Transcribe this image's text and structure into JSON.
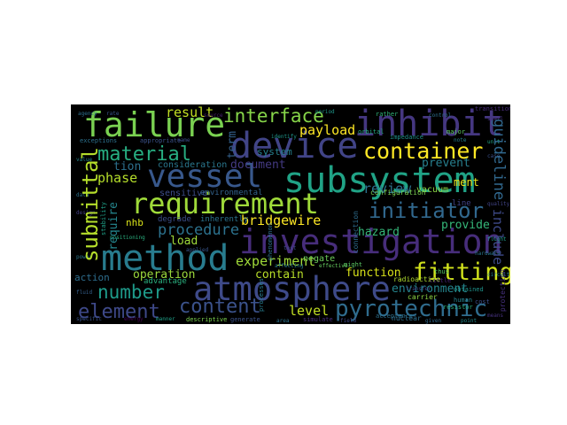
{
  "word_cloud": {
    "words": [
      {
        "id": "failure",
        "text": "failure",
        "color": "#7ad151"
      },
      {
        "id": "interface",
        "text": "interface",
        "color": "#86d549"
      },
      {
        "id": "inhibit",
        "text": "inhibit",
        "color": "#453781"
      },
      {
        "id": "device",
        "text": "device",
        "color": "#414487"
      },
      {
        "id": "result",
        "text": "result",
        "color": "#c2df23"
      },
      {
        "id": "payload",
        "text": "payload",
        "color": "#fde725"
      },
      {
        "id": "material",
        "text": "material",
        "color": "#27ad81"
      },
      {
        "id": "container",
        "text": "container",
        "color": "#fde725"
      },
      {
        "id": "vessel",
        "text": "vessel",
        "color": "#38588c"
      },
      {
        "id": "subsystem",
        "text": "subsystem",
        "color": "#20a386"
      },
      {
        "id": "phase",
        "text": "phase",
        "color": "#b5de2b"
      },
      {
        "id": "requirement",
        "text": "requirement",
        "color": "#9fda3a"
      },
      {
        "id": "initiator",
        "text": "initiator",
        "color": "#31688e"
      },
      {
        "id": "submittal",
        "text": "submittal",
        "color": "#b5de2b"
      },
      {
        "id": "investigation",
        "text": "investigation",
        "color": "#472d7b"
      },
      {
        "id": "bridgewire",
        "text": "bridgewire",
        "color": "#fde725"
      },
      {
        "id": "procedure",
        "text": "procedure",
        "color": "#2c728e"
      },
      {
        "id": "load",
        "text": "load",
        "color": "#9fda3a"
      },
      {
        "id": "method",
        "text": "method",
        "color": "#287c8e"
      },
      {
        "id": "experiment",
        "text": "experiment",
        "color": "#a0da39"
      },
      {
        "id": "fitting",
        "text": "fitting",
        "color": "#d0e11c"
      },
      {
        "id": "atmosphere",
        "text": "atmosphere",
        "color": "#3e4a89"
      },
      {
        "id": "number",
        "text": "number",
        "color": "#1e9b8a"
      },
      {
        "id": "operation",
        "text": "operation",
        "color": "#9bd93c"
      },
      {
        "id": "content",
        "text": "content",
        "color": "#3b528b"
      },
      {
        "id": "element",
        "text": "element",
        "color": "#3e4989"
      },
      {
        "id": "pyrotechnic",
        "text": "pyrotechnic",
        "color": "#2f6c8e"
      },
      {
        "id": "level",
        "text": "level",
        "color": "#c2df23"
      },
      {
        "id": "environment",
        "text": "environment",
        "color": "#25858e"
      },
      {
        "id": "guideline",
        "text": "guideline",
        "color": "#31688e"
      },
      {
        "id": "include",
        "text": "include",
        "color": "#3e4a89"
      },
      {
        "id": "review",
        "text": "review",
        "color": "#2c728e"
      },
      {
        "id": "prevent",
        "text": "prevent",
        "color": "#277f8e"
      },
      {
        "id": "document",
        "text": "document",
        "color": "#443a83"
      },
      {
        "id": "hazard",
        "text": "hazard",
        "color": "#35b779"
      },
      {
        "id": "provide",
        "text": "provide",
        "color": "#35b779"
      },
      {
        "id": "contain",
        "text": "contain",
        "color": "#b8de29"
      },
      {
        "id": "function",
        "text": "function",
        "color": "#d8e219"
      },
      {
        "id": "action",
        "text": "action",
        "color": "#2e6e8e"
      },
      {
        "id": "require",
        "text": "require",
        "color": "#24868e"
      },
      {
        "id": "nhb",
        "text": "nhb",
        "color": "#d8e219"
      },
      {
        "id": "tion",
        "text": "tion",
        "color": "#2d708e"
      },
      {
        "id": "system",
        "text": "system",
        "color": "#26818e"
      },
      {
        "id": "term",
        "text": "term",
        "color": "#34618d"
      },
      {
        "id": "ment",
        "text": "ment",
        "color": "#eae51a"
      },
      {
        "id": "vacuum",
        "text": "vacuum",
        "color": "#8bd646"
      },
      {
        "id": "negate",
        "text": "negate",
        "color": "#6ccd5a"
      },
      {
        "id": "consideration",
        "text": "consideration",
        "color": "#2a778e"
      },
      {
        "id": "sensitive",
        "text": "sensitive",
        "color": "#3d4d8a"
      },
      {
        "id": "environmental",
        "text": "environmental",
        "color": "#33628d"
      },
      {
        "id": "inherently",
        "text": "inherently",
        "color": "#2c738e"
      },
      {
        "id": "degrade",
        "text": "degrade",
        "color": "#3c4f8a"
      },
      {
        "id": "advantage",
        "text": "advantage",
        "color": "#2ab07f"
      },
      {
        "id": "configuration",
        "text": "configuration",
        "color": "#7ad151"
      },
      {
        "id": "radioactive",
        "text": "radioactive",
        "color": "#b0dd2f"
      },
      {
        "id": "connection",
        "text": "connection",
        "color": "#2e6d8e"
      },
      {
        "id": "protection",
        "text": "protection",
        "color": "#46307e"
      },
      {
        "id": "carrier",
        "text": "carrier",
        "color": "#8ed645"
      },
      {
        "id": "nuclear",
        "text": "nuclear",
        "color": "#2e6f8e"
      },
      {
        "id": "transition",
        "text": "transition",
        "color": "#472c7a"
      },
      {
        "id": "exceptions",
        "text": "exceptions",
        "color": "#2d718e"
      },
      {
        "id": "appropriate",
        "text": "appropriate",
        "color": "#3b528b"
      },
      {
        "id": "orbital",
        "text": "orbital",
        "color": "#25ac82"
      },
      {
        "id": "major",
        "text": "major",
        "color": "#5ec962"
      },
      {
        "id": "obtained",
        "text": "obtained",
        "color": "#1f948c"
      },
      {
        "id": "resistor",
        "text": "resistor",
        "color": "#29af7f"
      },
      {
        "id": "human",
        "text": "human",
        "color": "#25838e"
      },
      {
        "id": "generate",
        "text": "generate",
        "color": "#3b528b"
      },
      {
        "id": "descriptive",
        "text": "descriptive",
        "color": "#7cd250"
      },
      {
        "id": "simulate",
        "text": "simulate",
        "color": "#472f7d"
      },
      {
        "id": "little",
        "text": "little",
        "color": "#482475"
      },
      {
        "id": "might",
        "text": "might",
        "color": "#5ac864"
      },
      {
        "id": "thus",
        "text": "thus",
        "color": "#54c568"
      },
      {
        "id": "stability",
        "text": "stability",
        "color": "#1fa088"
      },
      {
        "id": "processes",
        "text": "processes",
        "color": "#287d8e"
      },
      {
        "id": "phenomenon",
        "text": "phenomenon",
        "color": "#2e6e8e"
      },
      {
        "id": "acceptance",
        "text": "acceptance",
        "color": "#2d708e"
      },
      {
        "id": "impedance",
        "text": "impedance",
        "color": "#20928c"
      },
      {
        "id": "identify",
        "text": "identify",
        "color": "#1f968b"
      },
      {
        "id": "rather",
        "text": "rather",
        "color": "#31b57b"
      },
      {
        "id": "cost",
        "text": "cost",
        "color": "#3d4e8a"
      },
      {
        "id": "line",
        "text": "line",
        "color": "#414487"
      },
      {
        "id": "transfer",
        "text": "transfer",
        "color": "#3f4889"
      },
      {
        "id": "positioning",
        "text": "positioning",
        "color": "#2ab07f"
      },
      {
        "id": "affecting",
        "text": "affecting",
        "color": "#287c8e"
      },
      {
        "id": "effective",
        "text": "effective",
        "color": "#65cb5e"
      },
      {
        "id": "applied",
        "text": "applied",
        "color": "#39568c"
      },
      {
        "id": "note",
        "text": "note",
        "color": "#277f8e"
      },
      {
        "id": "name",
        "text": "name",
        "color": "#3d4d8a"
      },
      {
        "id": "fluid",
        "text": "fluid",
        "color": "#355f8d"
      },
      {
        "id": "agency",
        "text": "agency",
        "color": "#2d708e"
      },
      {
        "id": "rate",
        "text": "rate",
        "color": "#3a548c"
      },
      {
        "id": "source",
        "text": "source",
        "color": "#481f70"
      },
      {
        "id": "period",
        "text": "period",
        "color": "#1f988b"
      },
      {
        "id": "control",
        "text": "control",
        "color": "#2d708e"
      },
      {
        "id": "shall",
        "text": "shall",
        "color": "#46337f"
      },
      {
        "id": "unit",
        "text": "unit",
        "color": "#22a785"
      },
      {
        "id": "case",
        "text": "case",
        "color": "#3b528b"
      },
      {
        "id": "value",
        "text": "value",
        "color": "#24868e"
      },
      {
        "id": "data",
        "text": "data",
        "color": "#2c728e"
      },
      {
        "id": "design",
        "text": "design",
        "color": "#433e85"
      },
      {
        "id": "power",
        "text": "power",
        "color": "#2a788e"
      },
      {
        "id": "specific",
        "text": "specific",
        "color": "#3a538b"
      },
      {
        "id": "energy",
        "text": "energy",
        "color": "#440154"
      },
      {
        "id": "manner",
        "text": "manner",
        "color": "#1fa088"
      },
      {
        "id": "area",
        "text": "area",
        "color": "#2c738e"
      },
      {
        "id": "field",
        "text": "field",
        "color": "#3f4889"
      },
      {
        "id": "given",
        "text": "given",
        "color": "#30698e"
      },
      {
        "id": "point",
        "text": "point",
        "color": "#23898e"
      },
      {
        "id": "means",
        "text": "means",
        "color": "#46327e"
      },
      {
        "id": "flight",
        "text": "flight",
        "color": "#1e9c89"
      },
      {
        "id": "hardware",
        "text": "hardware",
        "color": "#2a768e"
      },
      {
        "id": "quality",
        "text": "quality",
        "color": "#414487"
      },
      {
        "id": "circuit",
        "text": "circuit",
        "color": "#26828e"
      },
      {
        "id": "test",
        "text": "test",
        "color": "#3e4989"
      }
    ]
  }
}
